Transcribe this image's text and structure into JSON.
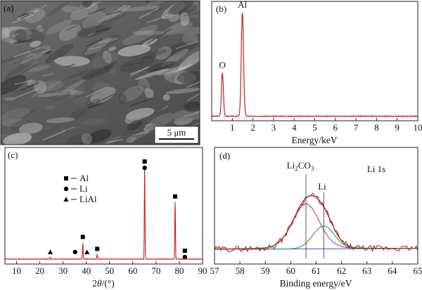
{
  "panels": {
    "a": {
      "label": "(a)",
      "scale_bar": "5 μm"
    },
    "b": {
      "label": "(b)"
    },
    "c": {
      "label": "(c)"
    },
    "d": {
      "label": "(d)"
    }
  },
  "chart_data": [
    {
      "id": "b",
      "type": "line",
      "title": "",
      "xlabel": "Energy/keV",
      "ylabel": "",
      "xlim": [
        0,
        10
      ],
      "x_ticks": [
        1,
        2,
        3,
        4,
        5,
        6,
        7,
        8,
        9,
        10
      ],
      "series": [
        {
          "color": "#cc1f1f",
          "peaks": [
            {
              "label": "O",
              "x": 0.52,
              "height": 0.42
            },
            {
              "label": "Al",
              "x": 1.49,
              "height": 1.0
            }
          ]
        }
      ]
    },
    {
      "id": "c",
      "type": "line",
      "title": "",
      "xlabel": "2θ/(°)",
      "xlabel_parts": [
        "2",
        "θ",
        "/(°)"
      ],
      "ylabel": "",
      "xlim": [
        5,
        90
      ],
      "x_ticks": [
        10,
        20,
        30,
        40,
        50,
        60,
        70,
        80,
        90
      ],
      "legend": {
        "position": "left",
        "entries": [
          {
            "marker": "square",
            "label": "Al"
          },
          {
            "marker": "circle",
            "label": "Li"
          },
          {
            "marker": "triangle",
            "label": "LiAl"
          }
        ]
      },
      "series": [
        {
          "color": "#cc1f1f",
          "peaks": [
            {
              "x": 24.5,
              "height": 0.02
            },
            {
              "x": 38.5,
              "height": 0.18
            },
            {
              "x": 44.7,
              "height": 0.05
            },
            {
              "x": 65.1,
              "height": 1.0
            },
            {
              "x": 78.2,
              "height": 0.62
            },
            {
              "x": 82.4,
              "height": 0.03
            }
          ]
        }
      ],
      "markers": [
        {
          "x": 24.5,
          "symbols": [
            "triangle"
          ]
        },
        {
          "x": 35.2,
          "symbols": [
            "circle"
          ]
        },
        {
          "x": 38.5,
          "symbols": [
            "square"
          ]
        },
        {
          "x": 40.3,
          "symbols": [
            "triangle"
          ]
        },
        {
          "x": 44.7,
          "symbols": [
            "square"
          ]
        },
        {
          "x": 65.1,
          "symbols": [
            "square",
            "circle"
          ]
        },
        {
          "x": 78.2,
          "symbols": [
            "square"
          ]
        },
        {
          "x": 82.4,
          "symbols": [
            "square",
            "circle"
          ]
        }
      ]
    },
    {
      "id": "d",
      "type": "line",
      "title": "Li 1s",
      "xlabel": "Binding energy/eV",
      "ylabel": "",
      "xlim": [
        57,
        65
      ],
      "x_ticks": [
        57,
        58,
        59,
        60,
        61,
        62,
        63,
        64,
        65
      ],
      "annotations": [
        {
          "text": "Li2CO3",
          "parts": [
            "Li",
            "2",
            "CO",
            "3"
          ],
          "x": 60.6
        },
        {
          "text": "Li",
          "parts": [
            "Li"
          ],
          "x": 61.3
        }
      ],
      "series": [
        {
          "name": "",
          "role": "raw",
          "color": "#333333"
        },
        {
          "name": "",
          "role": "envelope",
          "color": "#e02020"
        },
        {
          "name": "",
          "role": "component",
          "color": "#9b3fc4",
          "center": 60.6,
          "height": 0.69,
          "fwhm": 1.25
        },
        {
          "name": "",
          "role": "component",
          "color": "#2e9c4f",
          "center": 61.3,
          "height": 0.35,
          "fwhm": 1.0
        },
        {
          "name": "",
          "role": "background",
          "color": "#3b5bd6"
        }
      ]
    }
  ]
}
